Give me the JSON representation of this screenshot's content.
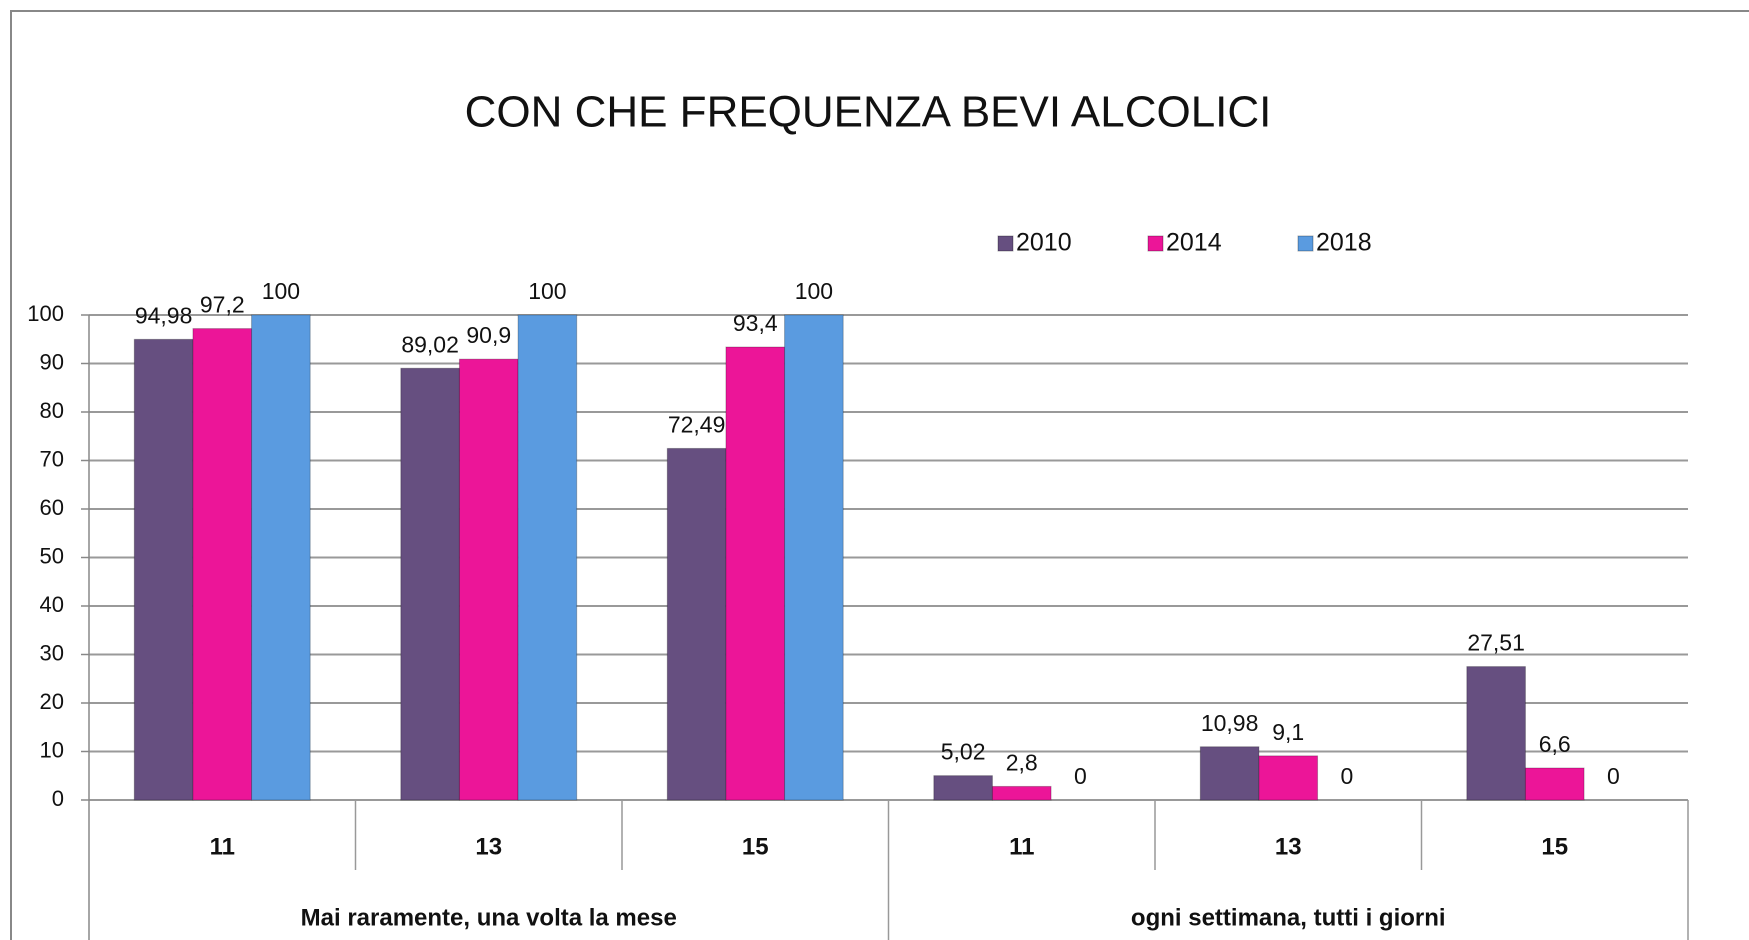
{
  "chart_data": {
    "type": "bar",
    "title": "CON CHE FREQUENZA BEVI ALCOLICI",
    "categories": [
      "11",
      "13",
      "15",
      "11",
      "13",
      "15"
    ],
    "group_labels": [
      "Mai raramente, una volta la mese",
      "ogni settimana, tutti i giorni"
    ],
    "series": [
      {
        "name": "2010",
        "color": "#664f80",
        "values": [
          94.98,
          89.02,
          72.49,
          5.02,
          10.98,
          27.51
        ],
        "value_labels": [
          "94,98",
          "89,02",
          "72,49",
          "5,02",
          "10,98",
          "27,51"
        ]
      },
      {
        "name": "2014",
        "color": "#ec1598",
        "values": [
          97.2,
          90.9,
          93.4,
          2.8,
          9.1,
          6.6
        ],
        "value_labels": [
          "97,2",
          "90,9",
          "93,4",
          "2,8",
          "9,1",
          "6,6"
        ]
      },
      {
        "name": "2018",
        "color": "#5a9be0",
        "values": [
          100,
          100,
          100,
          0,
          0,
          0
        ]
      }
    ],
    "ylim": [
      0,
      100
    ],
    "yticks": [
      0,
      10,
      20,
      30,
      40,
      50,
      60,
      70,
      80,
      90,
      100
    ],
    "grid": true,
    "legend": "top-right"
  }
}
